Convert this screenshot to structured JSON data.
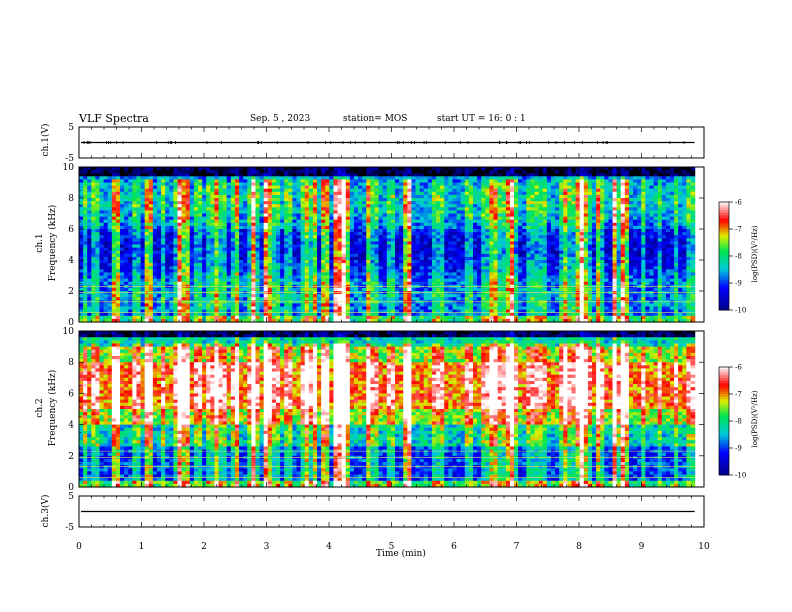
{
  "header": {
    "title": "VLF Spectra",
    "date": "Sep. 5 , 2023",
    "station": "station= MOS",
    "start": "start  UT =   16: 0  : 1"
  },
  "colorbar": {
    "label": "log(PSD)(V²/Hz)",
    "ticks": [
      "-6",
      "-7",
      "-8",
      "-9",
      "-10"
    ]
  },
  "colors": {
    "background": "#000000",
    "low": "#0000a0",
    "mid": "#00c8c8",
    "high": "#ff0000",
    "max": "#ffffff"
  },
  "chart_data": [
    {
      "type": "line",
      "panel": "ch.1(V)",
      "ylabel": "ch.1(V)",
      "yticks": [
        "5",
        "-5"
      ],
      "ylim": [
        -5,
        5
      ],
      "xlim": [
        0,
        10
      ],
      "baseline": 0
    },
    {
      "type": "heatmap",
      "panel": "ch.1 spectrogram",
      "ylabel": "ch.1\nFrequency (kHz)",
      "ylabel_line1": "ch.1",
      "ylabel_line2": "Frequency (kHz)",
      "yticks": [
        "0",
        "2",
        "4",
        "6",
        "8",
        "10"
      ],
      "ylim": [
        0,
        10
      ],
      "xlim": [
        0,
        10
      ],
      "colorbar_range": [
        -10,
        -6
      ]
    },
    {
      "type": "heatmap",
      "panel": "ch.2 spectrogram",
      "ylabel_line1": "ch.2",
      "ylabel_line2": "Frequency (kHz)",
      "yticks": [
        "0",
        "2",
        "4",
        "6",
        "8",
        "10"
      ],
      "ylim": [
        0,
        10
      ],
      "xlim": [
        0,
        10
      ],
      "colorbar_range": [
        -10,
        -6
      ]
    },
    {
      "type": "line",
      "panel": "ch.3(V)",
      "ylabel": "ch.3(V)",
      "yticks": [
        "5",
        "-5"
      ],
      "ylim": [
        -5,
        5
      ],
      "xlim": [
        0,
        10
      ],
      "baseline": 0,
      "xlabel": "Time  (min)",
      "xticks": [
        "0",
        "1",
        "2",
        "3",
        "4",
        "5",
        "6",
        "7",
        "8",
        "9",
        "10"
      ]
    }
  ]
}
